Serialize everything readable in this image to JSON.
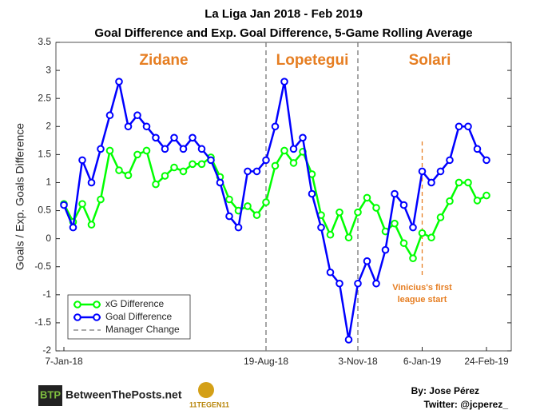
{
  "chart_data": {
    "type": "line",
    "title": "La Liga Jan 2018 - Feb 2019",
    "subtitle": "Goal Difference and Exp. Goal Difference, 5-Game Rolling Average",
    "ylabel": "Goals / Exp. Goals Difference",
    "categories": [
      "7-Jan-18",
      null,
      null,
      null,
      null,
      null,
      null,
      null,
      null,
      null,
      null,
      null,
      null,
      null,
      null,
      null,
      null,
      null,
      null,
      null,
      null,
      null,
      "19-Aug-18",
      null,
      null,
      null,
      null,
      null,
      null,
      null,
      null,
      null,
      "3-Nov-18",
      null,
      null,
      null,
      null,
      null,
      null,
      "6-Jan-19",
      null,
      null,
      null,
      null,
      null,
      null,
      "24-Feb-19"
    ],
    "series": [
      {
        "name": "xG Difference",
        "color": "#00ff00",
        "values": [
          0.62,
          0.3,
          0.62,
          0.25,
          0.7,
          1.57,
          1.22,
          1.13,
          1.5,
          1.57,
          0.97,
          1.12,
          1.27,
          1.2,
          1.33,
          1.33,
          1.45,
          1.1,
          0.7,
          0.5,
          0.58,
          0.42,
          0.65,
          1.3,
          1.57,
          1.35,
          1.55,
          1.15,
          0.42,
          0.07,
          0.47,
          0.02,
          0.47,
          0.73,
          0.55,
          0.13,
          0.27,
          -0.08,
          -0.35,
          0.1,
          0.02,
          0.38,
          0.67,
          1.0,
          1.0,
          0.68,
          0.77
        ]
      },
      {
        "name": "Goal Difference",
        "color": "#0000ff",
        "values": [
          0.6,
          0.2,
          1.4,
          1.0,
          1.6,
          2.2,
          2.8,
          2.0,
          2.2,
          2.0,
          1.8,
          1.6,
          1.8,
          1.6,
          1.8,
          1.6,
          1.4,
          1.0,
          0.4,
          0.2,
          1.2,
          1.2,
          1.4,
          2.0,
          2.8,
          1.6,
          1.8,
          0.8,
          0.2,
          -0.6,
          -0.8,
          -1.8,
          -0.8,
          -0.4,
          -0.8,
          -0.2,
          0.8,
          0.6,
          0.2,
          1.2,
          1.0,
          1.2,
          1.4,
          2.0,
          2.0,
          1.6,
          1.4
        ]
      }
    ],
    "ylim": [
      -2,
      3.5
    ],
    "yticks": [
      -2,
      -1.5,
      -1,
      -0.5,
      0,
      0.5,
      1,
      1.5,
      2,
      2.5,
      3,
      3.5
    ],
    "managers": [
      "Zidane",
      "Lopetegui",
      "Solari"
    ],
    "manager_change_label": "Manager Change",
    "manager_change_at": [
      "19-Aug-18",
      "3-Nov-18"
    ],
    "annotation": {
      "text": [
        "Vinicius's first",
        "league start"
      ],
      "at": "6-Jan-19",
      "color": "#e67e22"
    },
    "legend": "lower-left"
  },
  "footer": {
    "logo_mark": "BTP",
    "logo": "BetweenThePosts.net",
    "logo2": "11TEGEN11",
    "author": "By: Jose Pérez",
    "twitter": "Twitter: @jcperez_"
  }
}
